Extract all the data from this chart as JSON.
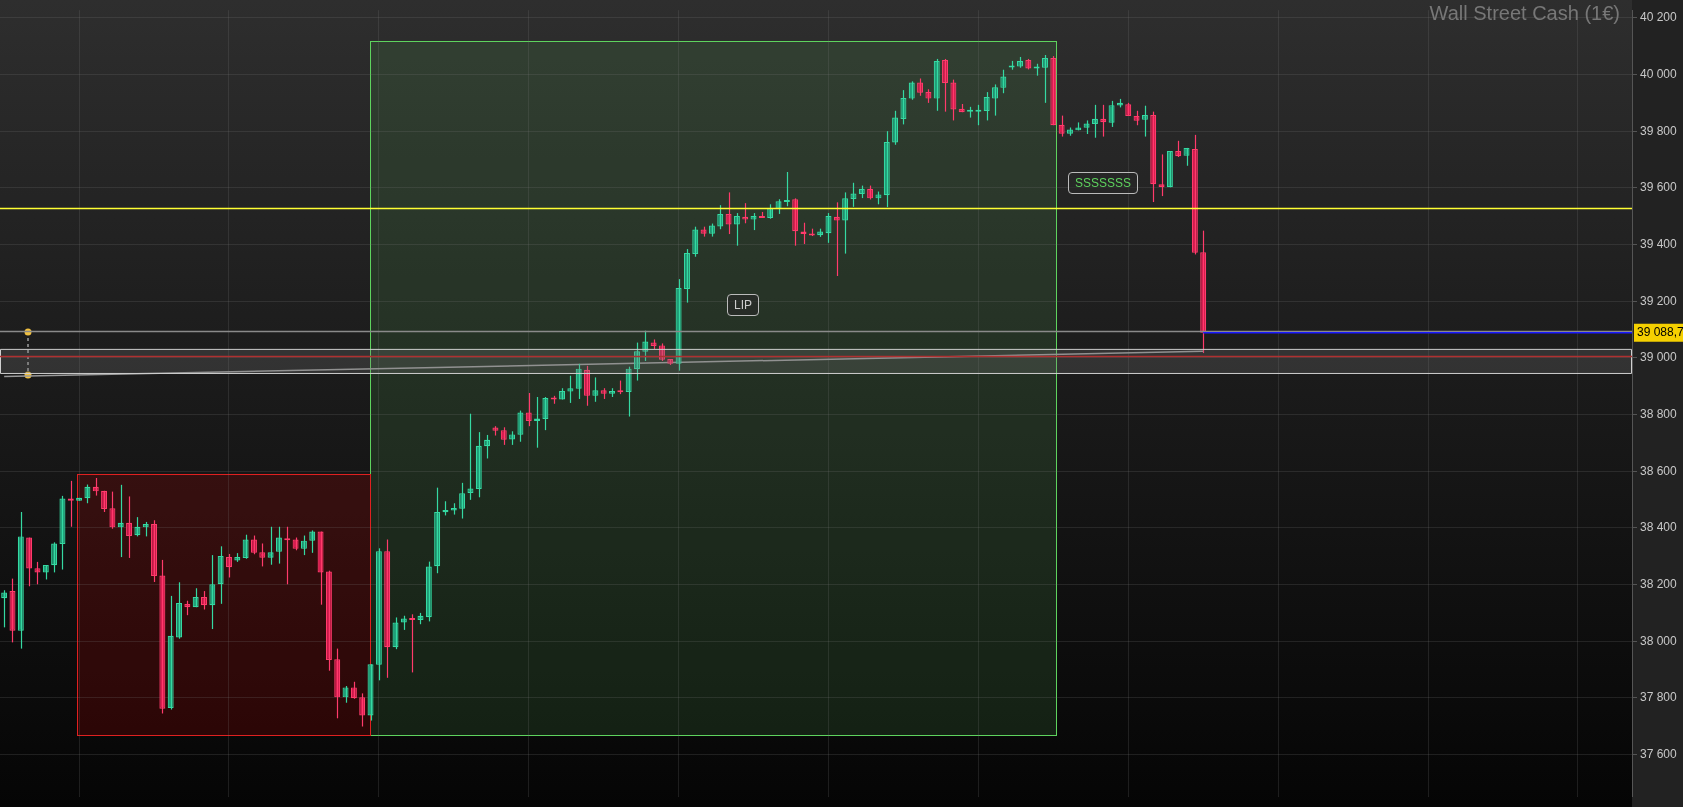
{
  "chart_data": {
    "type": "candlestick",
    "title": "Wall Street Cash (1€)",
    "categories": [
      null,
      null,
      null,
      null,
      null,
      null,
      null,
      null,
      null,
      null,
      null,
      null,
      null,
      null,
      null,
      null,
      null,
      null,
      null,
      null,
      null,
      null,
      null,
      null,
      null,
      null,
      null,
      null,
      null,
      null,
      null,
      null,
      null,
      null,
      null,
      null,
      null,
      null,
      null,
      null,
      null,
      null,
      null,
      null,
      null,
      null,
      null,
      null,
      null,
      null,
      null,
      null,
      null,
      null,
      null,
      null,
      null,
      null,
      null,
      null,
      null,
      null,
      null,
      null,
      null,
      null,
      null,
      null,
      null,
      null,
      null,
      null,
      null,
      null,
      null,
      null,
      null,
      null,
      null,
      null,
      null,
      null,
      null,
      null,
      null,
      null,
      null,
      null,
      null,
      null,
      null,
      null,
      null,
      null,
      null,
      null,
      null,
      null,
      null,
      null,
      null,
      null,
      null,
      null,
      null,
      null,
      null,
      null,
      null,
      null,
      null,
      null,
      null,
      null,
      null,
      null,
      null,
      null,
      null,
      null,
      null,
      null,
      null,
      null,
      null,
      null,
      null,
      null,
      null,
      null,
      null,
      null,
      null,
      null,
      null,
      null,
      null,
      null,
      null,
      null,
      null,
      null,
      null,
      null,
      null,
      null,
      null,
      null,
      null,
      null,
      null,
      null,
      null,
      null,
      null,
      null,
      null,
      null,
      null,
      null,
      null,
      null,
      null,
      null,
      null,
      null,
      null,
      null,
      null,
      null,
      null,
      null,
      null,
      null,
      null,
      null,
      null,
      null,
      null,
      null,
      null,
      null,
      null,
      null,
      null,
      null,
      null,
      null,
      null,
      null,
      null,
      null,
      null,
      null,
      null,
      null
    ],
    "ohlc": [
      [
        38152,
        38180,
        38049,
        38172
      ],
      [
        38177,
        38221,
        37996,
        38037
      ],
      [
        38037,
        38456,
        37974,
        38370
      ],
      [
        38366,
        38366,
        38194,
        38257
      ],
      [
        38258,
        38280,
        38201,
        38243
      ],
      [
        38243,
        38269,
        38218,
        38269
      ],
      [
        38268,
        38349,
        38243,
        38345
      ],
      [
        38343,
        38513,
        38253,
        38504
      ],
      [
        38504,
        38566,
        38404,
        38496
      ],
      [
        38496,
        38506,
        38496,
        38506
      ],
      [
        38505,
        38553,
        38487,
        38545
      ],
      [
        38545,
        38576,
        38514,
        38529
      ],
      [
        38531,
        38531,
        38456,
        38467
      ],
      [
        38469,
        38528,
        38397,
        38402
      ],
      [
        38402,
        38552,
        38297,
        38418
      ],
      [
        38418,
        38511,
        38294,
        38371
      ],
      [
        38374,
        38438,
        38370,
        38404
      ],
      [
        38402,
        38421,
        38370,
        38414
      ],
      [
        38414,
        38427,
        38209,
        38230
      ],
      [
        38232,
        38287,
        37745,
        37762
      ],
      [
        37764,
        38160,
        37759,
        38019
      ],
      [
        38013,
        38208,
        38009,
        38135
      ],
      [
        38131,
        38143,
        38092,
        38120
      ],
      [
        38120,
        38187,
        38120,
        38156
      ],
      [
        38156,
        38177,
        38112,
        38127
      ],
      [
        38127,
        38304,
        38043,
        38201
      ],
      [
        38201,
        38335,
        38132,
        38301
      ],
      [
        38297,
        38308,
        38225,
        38261
      ],
      [
        38285,
        38311,
        38280,
        38297
      ],
      [
        38294,
        38376,
        38291,
        38359
      ],
      [
        38359,
        38373,
        38307,
        38312
      ],
      [
        38314,
        38345,
        38264,
        38295
      ],
      [
        38295,
        38404,
        38270,
        38314
      ],
      [
        38316,
        38404,
        38274,
        38366
      ],
      [
        38363,
        38404,
        38201,
        38356
      ],
      [
        38359,
        38366,
        38321,
        38326
      ],
      [
        38326,
        38373,
        38304,
        38355
      ],
      [
        38355,
        38391,
        38312,
        38387
      ],
      [
        38387,
        38387,
        38129,
        38243
      ],
      [
        38246,
        38249,
        37896,
        37934
      ],
      [
        37936,
        37974,
        37728,
        37802
      ],
      [
        37802,
        37842,
        37783,
        37837
      ],
      [
        37837,
        37857,
        37797,
        37799
      ],
      [
        37802,
        37816,
        37699,
        37738
      ],
      [
        37738,
        37919,
        37720,
        37919
      ],
      [
        37917,
        38328,
        37862,
        38318
      ],
      [
        38318,
        38359,
        37871,
        37979
      ],
      [
        37979,
        38084,
        37972,
        38066
      ],
      [
        38066,
        38090,
        38040,
        38080
      ],
      [
        38080,
        38095,
        37890,
        38075
      ],
      [
        38075,
        38100,
        38060,
        38090
      ],
      [
        38085,
        38281,
        38070,
        38264
      ],
      [
        38265,
        38542,
        38240,
        38456
      ],
      [
        38455,
        38494,
        38444,
        38463
      ],
      [
        38461,
        38487,
        38447,
        38470
      ],
      [
        38468,
        38559,
        38433,
        38522
      ],
      [
        38523,
        38803,
        38499,
        38539
      ],
      [
        38537,
        38738,
        38508,
        38690
      ],
      [
        38688,
        38728,
        38645,
        38711
      ],
      [
        38754,
        38759,
        38726,
        38743
      ],
      [
        38745,
        38755,
        38693,
        38711
      ],
      [
        38712,
        38741,
        38693,
        38730
      ],
      [
        38729,
        38814,
        38704,
        38807
      ],
      [
        38807,
        38876,
        38759,
        38777
      ],
      [
        38777,
        38862,
        38683,
        38786
      ],
      [
        38784,
        38862,
        38745,
        38858
      ],
      [
        38858,
        38866,
        38838,
        38853
      ],
      [
        38853,
        38893,
        38853,
        38883
      ],
      [
        38881,
        38937,
        38841,
        38893
      ],
      [
        38891,
        38979,
        38855,
        38962
      ],
      [
        38958,
        38972,
        38831,
        38866
      ],
      [
        38866,
        38931,
        38845,
        38886
      ],
      [
        38886,
        38893,
        38855,
        38873
      ],
      [
        38873,
        38893,
        38862,
        38883
      ],
      [
        38883,
        38920,
        38872,
        38879
      ],
      [
        38880,
        38969,
        38793,
        38962
      ],
      [
        38960,
        39054,
        38920,
        39023
      ],
      [
        39022,
        39096,
        38989,
        39058
      ],
      [
        39054,
        39065,
        39031,
        39042
      ],
      [
        39044,
        39051,
        38989,
        38993
      ],
      [
        38996,
        38996,
        38975,
        38979
      ],
      [
        38979,
        39278,
        38955,
        39247
      ],
      [
        39243,
        39384,
        39195,
        39370
      ],
      [
        39367,
        39463,
        39357,
        39453
      ],
      [
        39453,
        39463,
        39428,
        39438
      ],
      [
        39438,
        39474,
        39428,
        39467
      ],
      [
        39464,
        39539,
        39454,
        39508
      ],
      [
        39508,
        39584,
        39437,
        39471
      ],
      [
        39471,
        39511,
        39396,
        39501
      ],
      [
        39498,
        39546,
        39475,
        39488
      ],
      [
        39488,
        39511,
        39451,
        39501
      ],
      [
        39501,
        39515,
        39494,
        39494
      ],
      [
        39494,
        39542,
        39491,
        39529
      ],
      [
        39525,
        39560,
        39508,
        39553
      ],
      [
        39550,
        39656,
        39535,
        39556
      ],
      [
        39560,
        39563,
        39396,
        39447
      ],
      [
        39446,
        39477,
        39402,
        39437
      ],
      [
        39439,
        39456,
        39430,
        39432
      ],
      [
        39433,
        39456,
        39427,
        39446
      ],
      [
        39440,
        39511,
        39406,
        39501
      ],
      [
        39498,
        39549,
        39289,
        39485
      ],
      [
        39485,
        39584,
        39368,
        39563
      ],
      [
        39561,
        39618,
        39533,
        39580
      ],
      [
        39578,
        39608,
        39564,
        39597
      ],
      [
        39597,
        39608,
        39559,
        39563
      ],
      [
        39563,
        39587,
        39542,
        39577
      ],
      [
        39574,
        39800,
        39532,
        39762
      ],
      [
        39760,
        39872,
        39752,
        39848
      ],
      [
        39843,
        39945,
        39824,
        39917
      ],
      [
        39915,
        39976,
        39911,
        39972
      ],
      [
        39972,
        39986,
        39925,
        39936
      ],
      [
        39938,
        39948,
        39900,
        39915
      ],
      [
        39915,
        40055,
        39872,
        40048
      ],
      [
        40051,
        40055,
        39869,
        39970
      ],
      [
        39972,
        39982,
        39838,
        39877
      ],
      [
        39879,
        39896,
        39867,
        39867
      ],
      [
        39869,
        39886,
        39848,
        39872
      ],
      [
        39869,
        39893,
        39821,
        39872
      ],
      [
        39871,
        39938,
        39838,
        39921
      ],
      [
        39915,
        39965,
        39855,
        39955
      ],
      [
        39953,
        40017,
        39934,
        39993
      ],
      [
        40025,
        40048,
        40017,
        40031
      ],
      [
        40028,
        40062,
        40024,
        40048
      ],
      [
        40051,
        40055,
        40018,
        40021
      ],
      [
        40021,
        40038,
        39996,
        40027
      ],
      [
        40024,
        40069,
        39900,
        40058
      ],
      [
        40058,
        40065,
        39821,
        39821
      ],
      [
        39823,
        39855,
        39781,
        39791
      ],
      [
        39791,
        39813,
        39784,
        39806
      ],
      [
        39803,
        39831,
        39803,
        39813
      ],
      [
        39812,
        39838,
        39790,
        39827
      ],
      [
        39825,
        39893,
        39777,
        39844
      ],
      [
        39844,
        39893,
        39781,
        39832
      ],
      [
        39830,
        39907,
        39815,
        39892
      ],
      [
        39891,
        39914,
        39884,
        39900
      ],
      [
        39895,
        39900,
        39854,
        39854
      ],
      [
        39854,
        39872,
        39821,
        39837
      ],
      [
        39840,
        39890,
        39781,
        39857
      ],
      [
        39857,
        39869,
        39550,
        39613
      ],
      [
        39613,
        39718,
        39571,
        39603
      ],
      [
        39602,
        39730,
        39602,
        39730
      ],
      [
        39730,
        39766,
        39709,
        39712
      ],
      [
        39713,
        39741,
        39678,
        39741
      ],
      [
        39737,
        39787,
        39365,
        39371
      ],
      [
        39373,
        39449,
        39017,
        39088.7
      ],
      null,
      null,
      null,
      null,
      null,
      null,
      null,
      null,
      null,
      null,
      null,
      null,
      null,
      null,
      null,
      null,
      null,
      null,
      null,
      null,
      null,
      null,
      null,
      null,
      null,
      null,
      null,
      null,
      null,
      null,
      null,
      null,
      null,
      null,
      null,
      null,
      null,
      null,
      null,
      null,
      null,
      null,
      null,
      null,
      null,
      null,
      null,
      null,
      null,
      null,
      null
    ],
    "series": [
      {
        "type": "line",
        "color": "#9a9a9a",
        "values": [
          38934,
          null,
          null,
          null,
          null,
          null,
          null,
          null,
          null,
          null,
          null,
          null,
          null,
          null,
          null,
          null,
          null,
          null,
          null,
          null,
          null,
          null,
          null,
          null,
          null,
          null,
          null,
          null,
          null,
          null,
          null,
          null,
          null,
          null,
          null,
          null,
          null,
          null,
          null,
          null,
          null,
          null,
          null,
          null,
          null,
          null,
          null,
          null,
          null,
          null,
          null,
          null,
          null,
          null,
          null,
          null,
          null,
          null,
          null,
          null,
          null,
          null,
          null,
          null,
          null,
          null,
          null,
          null,
          null,
          null,
          null,
          null,
          null,
          null,
          null,
          null,
          null,
          null,
          null,
          null,
          null,
          null,
          null,
          null,
          null,
          null,
          null,
          null,
          null,
          null,
          null,
          null,
          null,
          null,
          null,
          null,
          null,
          null,
          null,
          null,
          null,
          null,
          null,
          null,
          null,
          null,
          null,
          null,
          null,
          null,
          null,
          null,
          null,
          null,
          null,
          null,
          null,
          null,
          null,
          null,
          null,
          null,
          null,
          null,
          null,
          null,
          null,
          null,
          null,
          null,
          null,
          null,
          null,
          null,
          null,
          null,
          null,
          null,
          null,
          null,
          null,
          null,
          null,
          null,
          39023,
          null,
          null,
          null,
          null,
          null,
          null,
          null,
          null,
          null,
          null,
          null,
          null,
          null,
          null,
          null,
          null,
          null,
          null,
          null,
          null,
          null,
          null,
          null,
          null,
          null,
          null,
          null,
          null,
          null,
          null,
          null,
          null,
          null,
          null,
          null,
          null,
          null,
          null,
          null,
          null,
          null,
          null,
          null,
          null,
          null,
          null,
          null,
          null,
          null,
          null,
          null
        ]
      }
    ],
    "ylim": [
      37451,
      40227
    ],
    "yticks": [
      {
        "value": 37600,
        "label": "37 600"
      },
      {
        "value": 37800,
        "label": "37 800"
      },
      {
        "value": 38000,
        "label": "38 000"
      },
      {
        "value": 38200,
        "label": "38 200"
      },
      {
        "value": 38400,
        "label": "38 400"
      },
      {
        "value": 38600,
        "label": "38 600"
      },
      {
        "value": 38800,
        "label": "38 800"
      },
      {
        "value": 39000,
        "label": "39 000"
      },
      {
        "value": 39200,
        "label": "39 200"
      },
      {
        "value": 39400,
        "label": "39 400"
      },
      {
        "value": 39600,
        "label": "39 600"
      },
      {
        "value": 39800,
        "label": "39 800"
      },
      {
        "value": 40000,
        "label": "40 000"
      },
      {
        "value": 40200,
        "label": "40 200"
      }
    ],
    "bands": [
      {
        "axis": "y",
        "from": 38945,
        "to": 39030,
        "color": "#787878"
      }
    ],
    "ref_lines": [
      {
        "axis": "y",
        "value": 39527,
        "color": "#ffff33"
      },
      {
        "axis": "y",
        "value": 39093,
        "color": "#8a8a8a"
      },
      {
        "axis": "y",
        "value": 39005,
        "color": "#b03030"
      },
      {
        "axis": "y",
        "value": 39088.7,
        "label": "39 088,7",
        "color": "#1a1aff"
      }
    ],
    "annotations": [
      "LIP",
      "SSSSSSS"
    ],
    "grid": true,
    "tick_labels": "y"
  }
}
